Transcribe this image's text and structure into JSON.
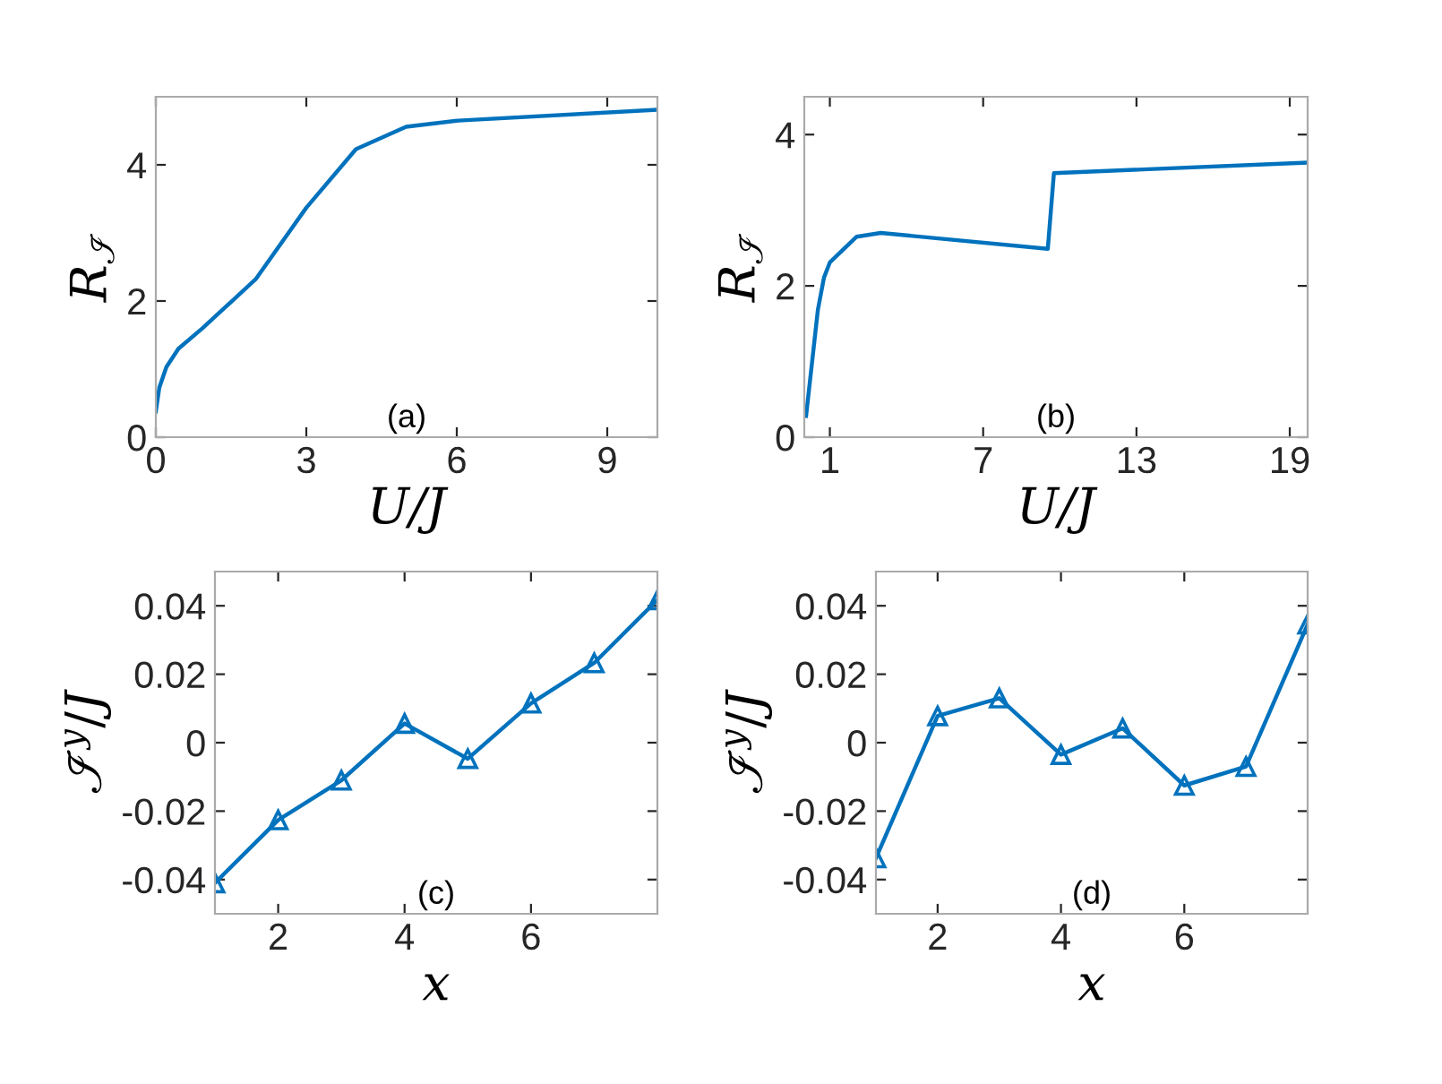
{
  "chart_data": [
    {
      "type": "line",
      "xlabel": "U/J",
      "ylabel": "R$_{ℐ}$",
      "annotations": [
        "(a)"
      ],
      "xlim": [
        0,
        10
      ],
      "ylim": [
        0,
        5
      ],
      "xticks": [
        0,
        3,
        6,
        9
      ],
      "yticks": [
        0,
        2,
        4
      ],
      "series": [
        {
          "color": "#0072bd",
          "x": [
            0,
            0.07,
            0.21,
            0.45,
            0.93,
            1.99,
            3,
            3.99,
            4.99,
            6.03,
            10
          ],
          "values": [
            0.38,
            0.73,
            1.03,
            1.3,
            1.6,
            2.32,
            3.37,
            4.23,
            4.56,
            4.65,
            4.81
          ]
        }
      ]
    },
    {
      "type": "line",
      "xlabel": "U/J",
      "ylabel": "R$_{ℐ}$",
      "annotations": [
        "(b)"
      ],
      "xlim": [
        0,
        19.7
      ],
      "ylim": [
        0,
        4.5
      ],
      "xticks": [
        1,
        7,
        13,
        19
      ],
      "yticks": [
        0,
        2,
        4
      ],
      "series": [
        {
          "color": "#0072bd",
          "x": [
            0.07,
            0.53,
            0.77,
            1,
            2.05,
            2.99,
            9.53,
            9.77,
            19.7
          ],
          "values": [
            0.28,
            1.68,
            2.11,
            2.31,
            2.65,
            2.7,
            2.49,
            3.49,
            3.63
          ]
        }
      ]
    },
    {
      "type": "line",
      "xlabel": "x",
      "ylabel": "ℐ$^{y}$/J",
      "annotations": [
        "(c)"
      ],
      "xlim": [
        1,
        8
      ],
      "ylim": [
        -0.05,
        0.05
      ],
      "xticks": [
        2,
        4,
        6
      ],
      "yticks": [
        -0.04,
        -0.02,
        0,
        0.02,
        0.04
      ],
      "marker": "triangle",
      "series": [
        {
          "color": "#0072bd",
          "x": [
            1,
            2,
            3,
            4,
            5,
            6,
            7,
            8
          ],
          "values": [
            -0.041,
            -0.0226,
            -0.011,
            0.0056,
            -0.0047,
            0.0115,
            0.0233,
            0.0417
          ]
        }
      ]
    },
    {
      "type": "line",
      "xlabel": "x",
      "ylabel": "ℐ$^{y}$/J",
      "annotations": [
        "(d)"
      ],
      "xlim": [
        1,
        8
      ],
      "ylim": [
        -0.05,
        0.05
      ],
      "xticks": [
        2,
        4,
        6
      ],
      "yticks": [
        -0.04,
        -0.02,
        0,
        0.02,
        0.04
      ],
      "marker": "triangle",
      "series": [
        {
          "color": "#0072bd",
          "x": [
            1,
            2,
            3,
            4,
            5,
            6,
            7,
            8
          ],
          "values": [
            -0.0337,
            0.0078,
            0.013,
            -0.0035,
            0.0042,
            -0.0125,
            -0.007,
            0.0346
          ]
        }
      ]
    }
  ]
}
